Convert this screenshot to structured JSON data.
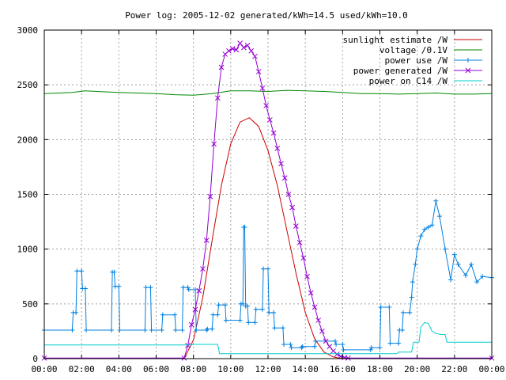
{
  "chart_data": {
    "type": "line",
    "title": "Power log: 2005-12-02 generated/kWh=14.5 used/kWh=10.0",
    "xlabel": "",
    "ylabel": "",
    "xlim": [
      0,
      24
    ],
    "ylim": [
      0,
      3000
    ],
    "x_ticks": [
      "00:00",
      "02:00",
      "04:00",
      "06:00",
      "08:00",
      "10:00",
      "12:00",
      "14:00",
      "16:00",
      "18:00",
      "20:00",
      "22:00",
      "00:00"
    ],
    "y_ticks": [
      0,
      500,
      1000,
      1500,
      2000,
      2500,
      3000
    ],
    "grid": true,
    "legend_position": "top-right",
    "series": [
      {
        "name": "sunlight estimate /W",
        "color": "#cc0000",
        "marker": "none",
        "x": [
          0,
          7.5,
          8,
          8.5,
          9,
          9.5,
          10,
          10.5,
          11,
          11.5,
          12,
          12.5,
          13,
          13.5,
          14,
          14.5,
          15,
          15.5,
          16,
          24
        ],
        "y": [
          0,
          0,
          170,
          560,
          1080,
          1580,
          1960,
          2160,
          2200,
          2120,
          1900,
          1580,
          1180,
          780,
          420,
          180,
          60,
          15,
          0,
          0
        ]
      },
      {
        "name": "voltage /0.1V",
        "color": "#008800",
        "marker": "none",
        "x": [
          0,
          1.5,
          2.2,
          4,
          6,
          7,
          8,
          9,
          10,
          11,
          12,
          13,
          14,
          15,
          16,
          17,
          18,
          19,
          20,
          21,
          22,
          23,
          24
        ],
        "y": [
          2420,
          2430,
          2445,
          2430,
          2420,
          2410,
          2405,
          2420,
          2445,
          2445,
          2440,
          2450,
          2445,
          2440,
          2430,
          2420,
          2420,
          2415,
          2420,
          2425,
          2415,
          2415,
          2420
        ]
      },
      {
        "name": "power use /W",
        "color": "#0080e0",
        "marker": "plus",
        "x": [
          0,
          1.5,
          1.55,
          1.7,
          1.75,
          2.0,
          2.05,
          2.2,
          2.25,
          3.6,
          3.65,
          3.75,
          3.8,
          4.0,
          4.05,
          5.4,
          5.45,
          5.7,
          5.75,
          6.3,
          6.35,
          7.0,
          7.05,
          7.4,
          7.45,
          7.7,
          7.75,
          8.1,
          8.15,
          8.7,
          8.75,
          9.0,
          9.05,
          9.3,
          9.35,
          9.7,
          9.75,
          10.5,
          10.55,
          10.65,
          10.7,
          10.75,
          10.8,
          10.9,
          10.95,
          11.3,
          11.35,
          11.7,
          11.75,
          12.0,
          12.05,
          12.3,
          12.35,
          12.8,
          12.85,
          13.2,
          13.25,
          13.8,
          13.85,
          14.5,
          14.55,
          15.6,
          15.65,
          16.0,
          16.05,
          17.5,
          17.55,
          18.0,
          18.05,
          18.5,
          18.55,
          19.0,
          19.05,
          19.2,
          19.25,
          19.6,
          19.7,
          19.75,
          19.9,
          20.0,
          20.2,
          20.4,
          20.6,
          20.8,
          21.0,
          21.2,
          21.5,
          21.8,
          22.0,
          22.2,
          22.6,
          22.9,
          23.2,
          23.5,
          24
        ],
        "y": [
          260,
          260,
          420,
          420,
          800,
          800,
          640,
          640,
          260,
          260,
          790,
          790,
          660,
          660,
          260,
          260,
          650,
          650,
          260,
          260,
          400,
          400,
          260,
          260,
          650,
          650,
          630,
          630,
          260,
          260,
          270,
          270,
          400,
          400,
          490,
          490,
          350,
          350,
          500,
          500,
          1200,
          1200,
          480,
          480,
          330,
          330,
          450,
          450,
          820,
          820,
          420,
          420,
          280,
          280,
          130,
          130,
          100,
          100,
          110,
          110,
          160,
          160,
          130,
          130,
          80,
          80,
          100,
          100,
          470,
          470,
          140,
          140,
          260,
          260,
          420,
          420,
          560,
          700,
          860,
          1000,
          1120,
          1180,
          1200,
          1220,
          1440,
          1300,
          1000,
          720,
          950,
          860,
          760,
          860,
          700,
          750,
          740
        ]
      },
      {
        "name": "power generated /W",
        "color": "#9400d3",
        "marker": "cross",
        "x": [
          0,
          7.5,
          7.7,
          7.9,
          8.1,
          8.3,
          8.5,
          8.7,
          8.9,
          9.1,
          9.3,
          9.5,
          9.7,
          9.9,
          10.1,
          10.3,
          10.5,
          10.7,
          10.9,
          11.1,
          11.3,
          11.5,
          11.7,
          11.9,
          12.1,
          12.3,
          12.5,
          12.7,
          12.9,
          13.1,
          13.3,
          13.5,
          13.7,
          13.9,
          14.1,
          14.3,
          14.5,
          14.7,
          14.9,
          15.1,
          15.3,
          15.5,
          15.7,
          15.9,
          16.1,
          16.3,
          24
        ],
        "y": [
          5,
          5,
          120,
          310,
          450,
          620,
          820,
          1080,
          1480,
          1960,
          2380,
          2660,
          2780,
          2810,
          2830,
          2820,
          2880,
          2840,
          2860,
          2810,
          2760,
          2620,
          2470,
          2310,
          2180,
          2060,
          1920,
          1780,
          1650,
          1500,
          1380,
          1210,
          1060,
          920,
          750,
          600,
          470,
          350,
          250,
          160,
          110,
          70,
          40,
          20,
          10,
          5,
          5
        ]
      },
      {
        "name": "power on C14 /W",
        "color": "#00cccc",
        "marker": "none",
        "x": [
          0,
          7.9,
          8.0,
          9.3,
          9.4,
          18.9,
          19.0,
          19.7,
          19.8,
          20.1,
          20.2,
          20.4,
          20.6,
          20.8,
          21.0,
          21.3,
          21.5,
          21.6,
          24
        ],
        "y": [
          125,
          125,
          130,
          130,
          45,
          45,
          60,
          60,
          150,
          150,
          290,
          330,
          320,
          250,
          230,
          220,
          220,
          150,
          150
        ]
      }
    ]
  }
}
